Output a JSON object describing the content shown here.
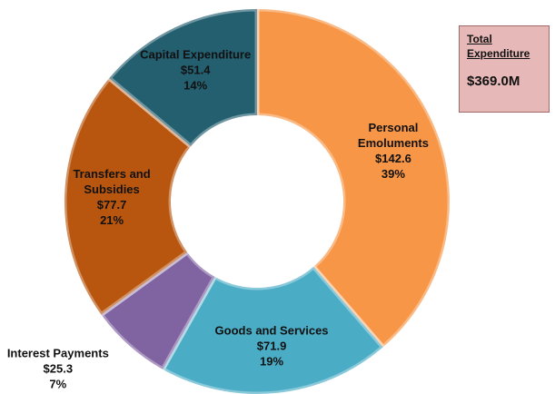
{
  "chart_data": {
    "type": "donut",
    "categories": [
      "Personal Emoluments",
      "Goods and Services",
      "Interest Payments",
      "Transfers and Subsidies",
      "Capital Expenditure"
    ],
    "values": [
      142.6,
      71.9,
      25.3,
      77.7,
      51.4
    ],
    "value_labels": [
      "$142.6",
      "$71.9",
      "$25.3",
      "$77.7",
      "$51.4"
    ],
    "shares": [
      39,
      19,
      7,
      21,
      14
    ],
    "share_labels": [
      "39%",
      "19%",
      "7%",
      "21%",
      "14%"
    ],
    "colors": [
      "#F79646",
      "#4BACC6",
      "#8064A2",
      "#B8560F",
      "#245F70"
    ],
    "annotation": {
      "title": "Total Expenditure",
      "value": 369.0,
      "value_label": "$369.0M"
    }
  }
}
